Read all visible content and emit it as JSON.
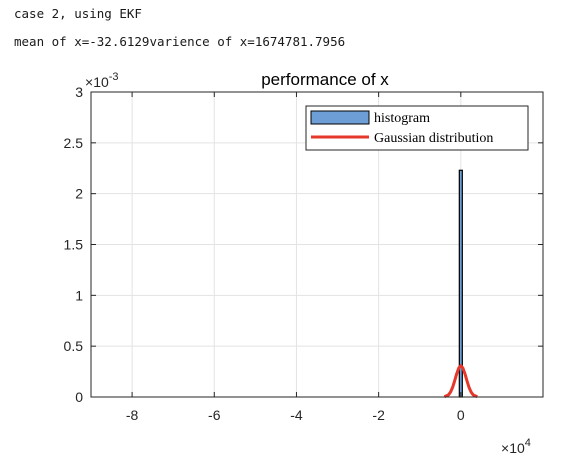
{
  "console": {
    "line1": "case 2, using EKF",
    "line2": "mean of x=-32.6129varience of x=1674781.7956"
  },
  "chart_data": {
    "type": "bar",
    "title": "performance of x",
    "xlabel": "",
    "ylabel": "",
    "x_multiplier_label": "10",
    "x_multiplier_exp": "4",
    "y_multiplier_label": "10",
    "y_multiplier_exp": "-3",
    "xlim": [
      -90000,
      20000
    ],
    "ylim": [
      0,
      0.003
    ],
    "x_ticks": [
      -80000,
      -60000,
      -40000,
      -20000,
      0
    ],
    "x_tick_labels": [
      "-8",
      "-6",
      "-4",
      "-2",
      "0"
    ],
    "y_ticks": [
      0,
      0.0005,
      0.001,
      0.0015,
      0.002,
      0.0025,
      0.003
    ],
    "y_tick_labels": [
      "0",
      "0.5",
      "1",
      "1.5",
      "2",
      "2.5",
      "3"
    ],
    "grid": true,
    "legend_placement": "top-right",
    "series": [
      {
        "name": "histogram",
        "type": "bar",
        "color": "#6d9fd6",
        "edge_color": "#000000",
        "values": [
          {
            "x": 0,
            "y": 0.00223
          }
        ]
      },
      {
        "name": "Gaussian distribution",
        "type": "line",
        "color": "#e5372a",
        "mean": -32.6129,
        "variance": 1674781.7956,
        "x": [
          -4000,
          -3000,
          -2500,
          -2000,
          -1500,
          -1000,
          -500,
          0,
          500,
          1000,
          1500,
          2000,
          2500,
          3000,
          4000
        ],
        "y": [
          2.6e-06,
          2.08e-05,
          4.85e-05,
          9.45e-05,
          0.000159,
          0.000229,
          0.000285,
          0.000308,
          0.000285,
          0.000229,
          0.000159,
          9.45e-05,
          4.85e-05,
          2.08e-05,
          2.6e-06
        ]
      }
    ]
  }
}
